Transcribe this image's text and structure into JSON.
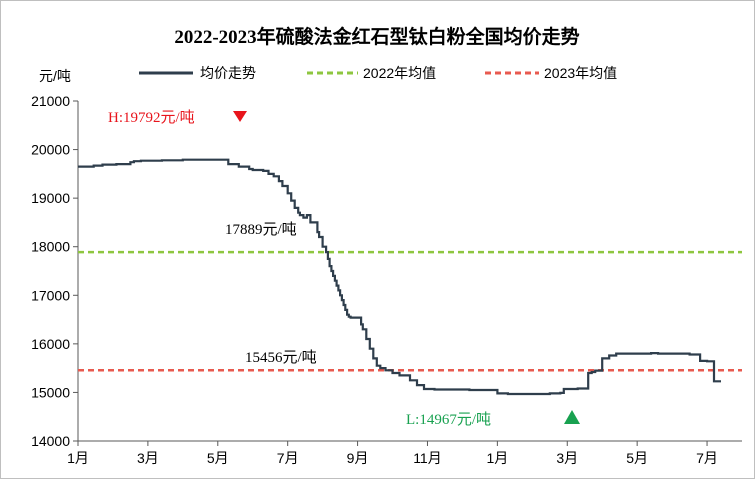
{
  "chart_data": {
    "type": "line",
    "title": "2022-2023年硫酸法金红石型钛白粉全国均价走势",
    "ylabel": "元/吨",
    "xlabel": "",
    "ylim": [
      14000,
      21000
    ],
    "yticks": [
      14000,
      15000,
      16000,
      17000,
      18000,
      19000,
      20000,
      21000
    ],
    "xlim": [
      0,
      19
    ],
    "xticks": [
      {
        "x": 0,
        "label": "1月"
      },
      {
        "x": 2,
        "label": "3月"
      },
      {
        "x": 4,
        "label": "5月"
      },
      {
        "x": 6,
        "label": "7月"
      },
      {
        "x": 8,
        "label": "9月"
      },
      {
        "x": 10,
        "label": "11月"
      },
      {
        "x": 12,
        "label": "1月"
      },
      {
        "x": 14,
        "label": "3月"
      },
      {
        "x": 16,
        "label": "5月"
      },
      {
        "x": 18,
        "label": "7月"
      }
    ],
    "grid": false,
    "legend_position": "top",
    "series": [
      {
        "name": "均价走势",
        "color": "#2f3e4c",
        "style": "solid",
        "step": true,
        "x": [
          0,
          0.45,
          0.7,
          1.1,
          1.5,
          1.6,
          1.8,
          2.3,
          2.4,
          2.9,
          3.0,
          4.2,
          4.3,
          4.6,
          4.9,
          5.0,
          5.3,
          5.45,
          5.6,
          5.75,
          5.85,
          6.0,
          6.1,
          6.2,
          6.3,
          6.35,
          6.45,
          6.55,
          6.65,
          6.75,
          6.85,
          6.9,
          7.0,
          7.1,
          7.15,
          7.2,
          7.25,
          7.3,
          7.35,
          7.4,
          7.45,
          7.5,
          7.55,
          7.6,
          7.65,
          7.7,
          7.75,
          7.8,
          8.1,
          8.15,
          8.25,
          8.35,
          8.45,
          8.55,
          8.65,
          8.8,
          9.0,
          9.2,
          9.5,
          9.7,
          9.9,
          10.2,
          11.2,
          12.0,
          12.3,
          13.2,
          13.5,
          13.8,
          13.9,
          14.3,
          14.6,
          14.7,
          14.8,
          15.0,
          15.2,
          15.4,
          16.4,
          16.6,
          17.2,
          17.5,
          17.8,
          18.0,
          18.2,
          18.4
        ],
        "values": [
          19650,
          19670,
          19690,
          19700,
          19740,
          19760,
          19770,
          19770,
          19780,
          19780,
          19792,
          19792,
          19700,
          19650,
          19600,
          19580,
          19560,
          19500,
          19450,
          19350,
          19250,
          19100,
          18950,
          18800,
          18700,
          18650,
          18600,
          18650,
          18500,
          18500,
          18300,
          18200,
          18000,
          17889,
          17750,
          17600,
          17500,
          17400,
          17300,
          17200,
          17100,
          17000,
          16900,
          16800,
          16700,
          16600,
          16560,
          16540,
          16400,
          16300,
          16100,
          15900,
          15700,
          15550,
          15500,
          15456,
          15400,
          15350,
          15250,
          15150,
          15070,
          15060,
          15050,
          14980,
          14967,
          14967,
          14980,
          14990,
          15070,
          15080,
          15400,
          15420,
          15450,
          15700,
          15760,
          15800,
          15810,
          15800,
          15800,
          15780,
          15650,
          15640,
          15230,
          15230
        ]
      },
      {
        "name": "2022年均值",
        "color": "#8ec63f",
        "style": "dashed",
        "x": [
          0,
          19
        ],
        "values": [
          17889,
          17889
        ]
      },
      {
        "name": "2023年均值",
        "color": "#e85a4f",
        "style": "dashed",
        "x": [
          0,
          19
        ],
        "values": [
          15456,
          15456
        ]
      }
    ],
    "annotations": [
      {
        "text": "H:19792元/吨",
        "color": "#e8141c",
        "marker": "triangle-down",
        "marker_color": "#e8141c"
      },
      {
        "text": "17889元/吨",
        "color": "#000000"
      },
      {
        "text": "15456元/吨",
        "color": "#000000"
      },
      {
        "text": "L:14967元/吨",
        "color": "#18a150",
        "marker": "triangle-up",
        "marker_color": "#18a150"
      }
    ]
  }
}
